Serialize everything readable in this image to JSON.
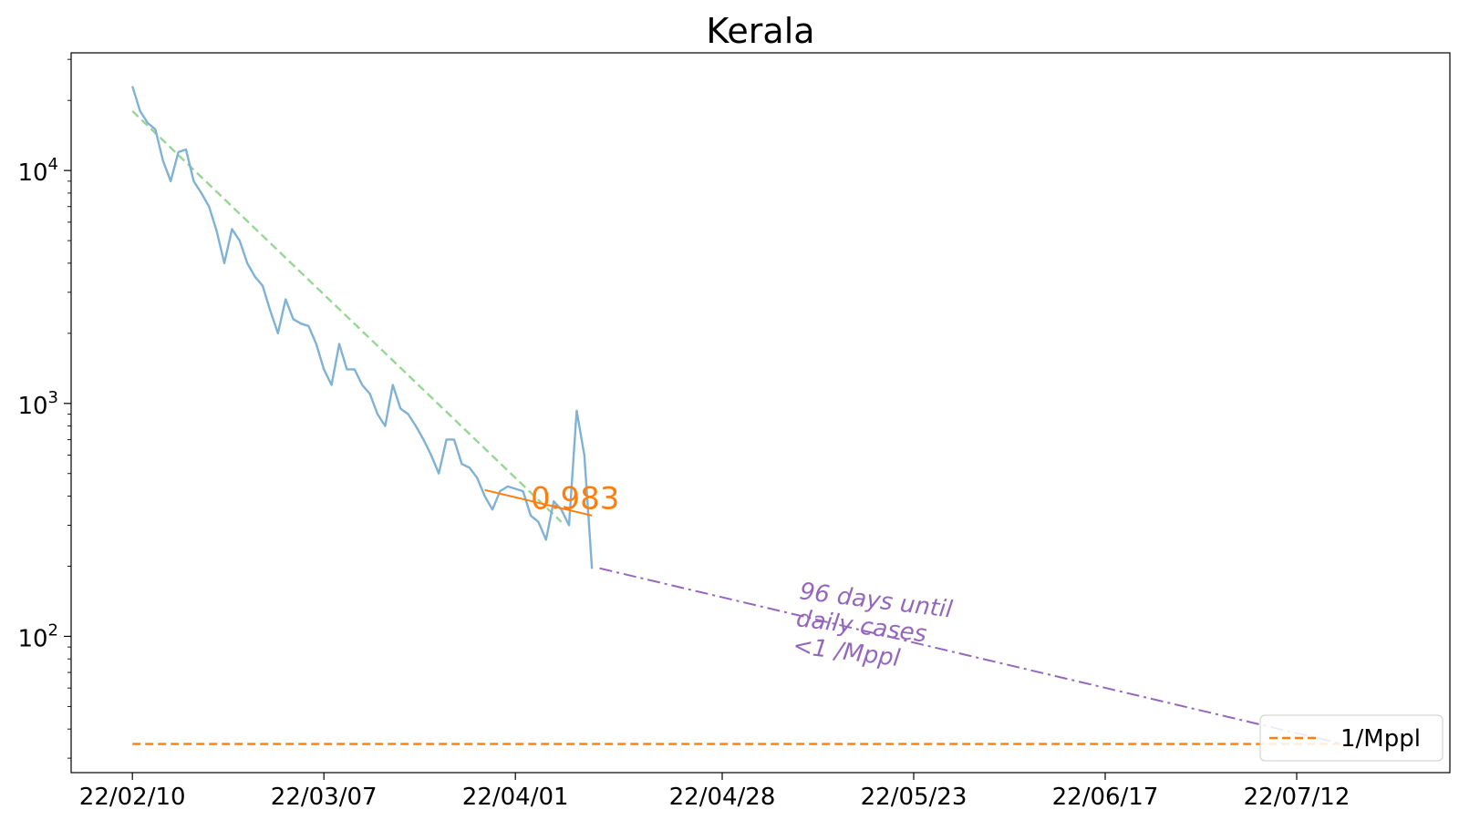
{
  "chart_data": {
    "type": "line",
    "title": "Kerala",
    "xlabel": "",
    "ylabel": "",
    "y_scale": "log",
    "ylim": [
      26,
      32000
    ],
    "xlim": [
      "2022-02-02",
      "2022-08-01"
    ],
    "x_tick_labels": [
      "22/02/10",
      "22/03/07",
      "22/04/01",
      "22/04/28",
      "22/05/23",
      "22/06/17",
      "22/07/12"
    ],
    "x_ticks": [
      "2022-02-10",
      "2022-03-07",
      "2022-04-01",
      "2022-04-28",
      "2022-05-23",
      "2022-06-17",
      "2022-07-12"
    ],
    "y_tick_labels": [
      {
        "base": "10",
        "exp": "2",
        "value": 100
      },
      {
        "base": "10",
        "exp": "3",
        "value": 1000
      },
      {
        "base": "10",
        "exp": "4",
        "value": 10000
      }
    ],
    "grid": false,
    "legend": {
      "placement": "lower-right",
      "entries": [
        "1/Mppl"
      ]
    },
    "series": [
      {
        "role": "daily-cases",
        "color": "#7fb2d5",
        "x": [
          "2022-02-10",
          "2022-02-11",
          "2022-02-12",
          "2022-02-13",
          "2022-02-14",
          "2022-02-15",
          "2022-02-16",
          "2022-02-17",
          "2022-02-18",
          "2022-02-19",
          "2022-02-20",
          "2022-02-21",
          "2022-02-22",
          "2022-02-23",
          "2022-02-24",
          "2022-02-25",
          "2022-02-26",
          "2022-02-27",
          "2022-02-28",
          "2022-03-01",
          "2022-03-02",
          "2022-03-03",
          "2022-03-04",
          "2022-03-05",
          "2022-03-06",
          "2022-03-07",
          "2022-03-08",
          "2022-03-09",
          "2022-03-10",
          "2022-03-11",
          "2022-03-12",
          "2022-03-13",
          "2022-03-14",
          "2022-03-15",
          "2022-03-16",
          "2022-03-17",
          "2022-03-18",
          "2022-03-19",
          "2022-03-20",
          "2022-03-21",
          "2022-03-22",
          "2022-03-23",
          "2022-03-24",
          "2022-03-25",
          "2022-03-26",
          "2022-03-27",
          "2022-03-28",
          "2022-03-29",
          "2022-03-30",
          "2022-03-31",
          "2022-04-01",
          "2022-04-02",
          "2022-04-03",
          "2022-04-04",
          "2022-04-05",
          "2022-04-06",
          "2022-04-07",
          "2022-04-08",
          "2022-04-09",
          "2022-04-10",
          "2022-04-11"
        ],
        "values": [
          23000,
          18000,
          16000,
          15000,
          11000,
          9000,
          12000,
          12300,
          9000,
          8000,
          7000,
          5500,
          4000,
          5600,
          5000,
          4000,
          3500,
          3200,
          2500,
          2000,
          2800,
          2300,
          2200,
          2150,
          1800,
          1400,
          1200,
          1800,
          1400,
          1400,
          1200,
          1100,
          900,
          800,
          1200,
          950,
          900,
          800,
          700,
          600,
          500,
          700,
          700,
          550,
          530,
          480,
          400,
          350,
          420,
          440,
          430,
          420,
          330,
          310,
          260,
          380,
          350,
          300,
          930,
          600,
          195
        ]
      },
      {
        "role": "trend-fit",
        "color": "#98d694",
        "x_start": "2022-02-10",
        "x_end": "2022-04-07",
        "y_start": 18000,
        "y_end": 310
      },
      {
        "role": "recent-fit",
        "color": "#ff7f0e",
        "x_start": "2022-03-28",
        "x_end": "2022-04-11",
        "y_start": 425,
        "y_end": 330
      },
      {
        "role": "projection",
        "color": "#9467bd",
        "x_start": "2022-04-12",
        "x_end": "2022-07-18",
        "y_start": 196,
        "y_end": 34.5
      },
      {
        "name": "1/Mppl",
        "role": "threshold",
        "color": "#ff7f0e",
        "x_start": "2022-02-10",
        "x_end": "2022-07-20",
        "value": 34.5
      }
    ],
    "annotations": [
      {
        "role": "growth-ratio",
        "text": "0.983",
        "color": "#ff7f0e",
        "x": "2022-04-03",
        "y": 400
      },
      {
        "role": "projection-note",
        "lines": [
          "96 days until",
          "daily cases",
          "<1 /Mppl"
        ],
        "color": "#9467bd",
        "x": "2022-05-08",
        "y": 145,
        "rotation_deg": 7
      }
    ]
  }
}
